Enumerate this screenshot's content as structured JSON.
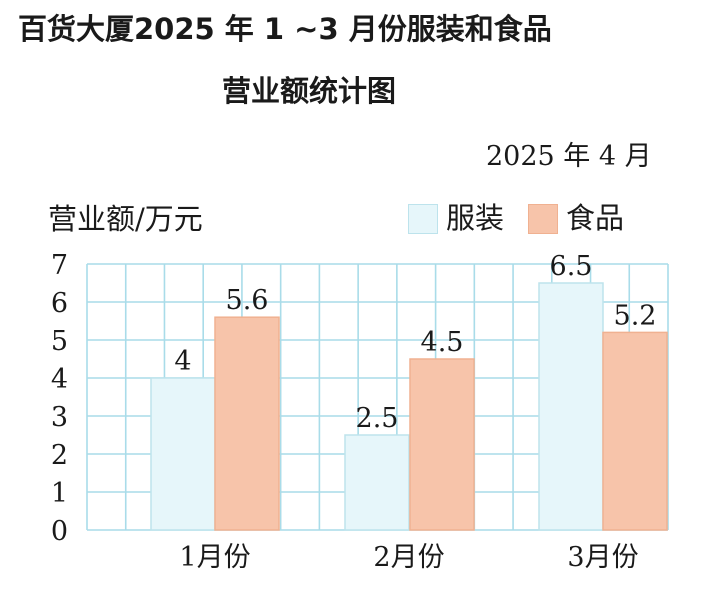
{
  "title_line1": "百货大厦2025 年 1 ~3 月份服装和食品",
  "title_line2": "营业额统计图",
  "date": "2025 年 4 月",
  "chart_data": {
    "type": "bar",
    "ylabel": "营业额/万元",
    "xlabel": "",
    "ylim": [
      0,
      7
    ],
    "yticks": [
      "0",
      "1",
      "2",
      "3",
      "4",
      "5",
      "6",
      "7"
    ],
    "categories": [
      "1月份",
      "2月份",
      "3月份"
    ],
    "series": [
      {
        "name": "服装",
        "values": [
          4,
          2.5,
          6.5
        ],
        "labels": [
          "4",
          "2.5",
          "6.5"
        ],
        "color": "#e6f6fa",
        "border": "#bde3ec"
      },
      {
        "name": "食品",
        "values": [
          5.6,
          4.5,
          5.2
        ],
        "labels": [
          "5.6",
          "4.5",
          "5.2"
        ],
        "color": "#f7c4aa",
        "border": "#f0b191"
      }
    ],
    "grid": true,
    "legend_position": "top-right",
    "grid_color": "#a9dce9"
  }
}
